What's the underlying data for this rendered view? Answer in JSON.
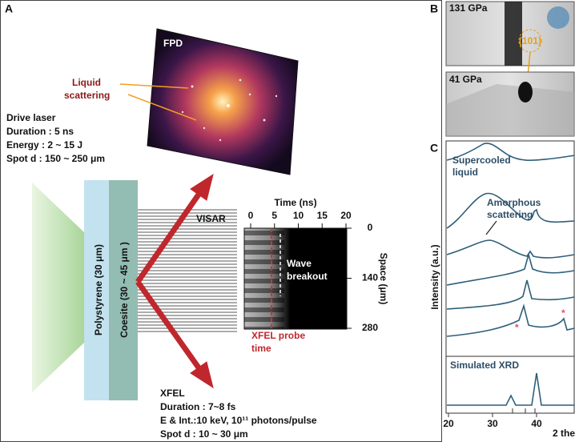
{
  "panel_a": {
    "label": "A",
    "detector": "FPD",
    "liquid_scattering": [
      "Liquid",
      "scattering"
    ],
    "drive_laser": {
      "title": "Drive laser",
      "lines": [
        "Duration : 5 ns",
        "Energy : 2 ~ 15 J",
        "Spot d : 150 ~ 250 μm"
      ]
    },
    "polystyrene": "Polystyrene (30 μm)",
    "coesite": "Coesite (30 ~ 45 μm )",
    "visar": "VISAR",
    "visar_image": {
      "x_label": "Time (ns)",
      "xticks": [
        0,
        5,
        10,
        15,
        20
      ],
      "y_label": "Space (μm)",
      "yticks": [
        0,
        140,
        280
      ],
      "wave_breakout": [
        "Wave",
        "breakout"
      ],
      "probe": [
        "XFEL probe",
        "time"
      ]
    },
    "xfel": {
      "title": "XFEL",
      "lines": [
        "Duration : 7~8 fs",
        "E & Int.:10 keV, 10¹¹ photons/pulse",
        "Spot d : 10 ~ 30 μm"
      ]
    }
  },
  "panel_b": {
    "label": "B",
    "top": "131 GPa",
    "peak": "(101)",
    "bottom": "41 GPa"
  },
  "panel_c": {
    "label": "C",
    "supercooled": [
      "Supercooled",
      "liquid"
    ],
    "amorphous": [
      "Amorphous",
      "scattering"
    ],
    "y_label": "Intensity (a.u.)",
    "simulated": "Simulated XRD",
    "markers": [
      "*",
      "*"
    ],
    "xticks": [
      20,
      30,
      40
    ],
    "x_label": "2 the"
  }
}
